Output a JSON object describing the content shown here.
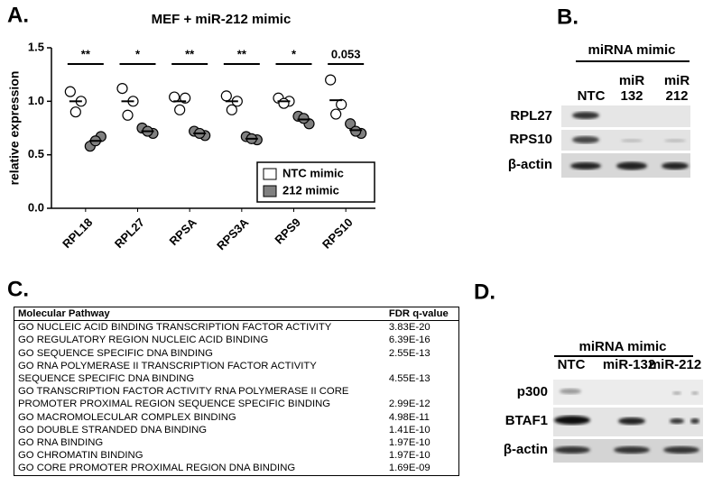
{
  "chart_data": {
    "type": "dotplot",
    "panel_label": "A.",
    "title": "MEF + miR-212 mimic",
    "y_label": "relative expression",
    "categories": [
      "RPL18",
      "RPL27",
      "RPSA",
      "RPS3A",
      "RPS9",
      "RPS10"
    ],
    "annotations": [
      "**",
      "*",
      "**",
      "**",
      "*",
      "0.053"
    ],
    "ylim": [
      0,
      1.5
    ],
    "yticks": [
      {
        "value": 0,
        "label": "0.0"
      },
      0.5,
      {
        "value": 1,
        "label": "1.0"
      },
      1.5
    ],
    "series": [
      {
        "name": "NTC mimic",
        "color": "#ffffff",
        "points": [
          [
            1.09,
            1.0,
            0.9
          ],
          [
            1.12,
            1.0,
            0.87
          ],
          [
            1.04,
            1.03,
            0.92
          ],
          [
            1.05,
            1.0,
            0.92
          ],
          [
            1.03,
            1.0,
            0.98
          ],
          [
            1.2,
            0.97,
            0.88
          ]
        ],
        "means": [
          1.0,
          1.0,
          1.0,
          1.0,
          1.0,
          1.01
        ]
      },
      {
        "name": "212 mimic",
        "color": "#808080",
        "points": [
          [
            0.58,
            0.67,
            0.63
          ],
          [
            0.75,
            0.7,
            0.72
          ],
          [
            0.72,
            0.68,
            0.7
          ],
          [
            0.67,
            0.64,
            0.65
          ],
          [
            0.86,
            0.79,
            0.84
          ],
          [
            0.79,
            0.7,
            0.72
          ]
        ],
        "means": [
          0.63,
          0.72,
          0.7,
          0.65,
          0.83,
          0.73
        ]
      }
    ]
  },
  "panel_b": {
    "label": "B.",
    "header": "miRNA mimic",
    "lanes": [
      [
        "NTC"
      ],
      [
        "miR",
        "132"
      ],
      [
        "miR",
        "212"
      ]
    ],
    "rows": [
      "RPL27",
      "RPS10",
      "β-actin"
    ]
  },
  "panel_c": {
    "label": "C.",
    "table": {
      "header": [
        "Molecular Pathway",
        "FDR q-value"
      ],
      "rows": [
        [
          [
            "GO NUCLEIC ACID BINDING TRANSCRIPTION FACTOR ACTIVITY"
          ],
          "3.83E-20"
        ],
        [
          [
            "GO REGULATORY REGION NUCLEIC ACID BINDING"
          ],
          "6.39E-16"
        ],
        [
          [
            "GO SEQUENCE SPECIFIC DNA BINDING"
          ],
          "2.55E-13"
        ],
        [
          [
            "GO RNA POLYMERASE II TRANSCRIPTION FACTOR ACTIVITY",
            "SEQUENCE SPECIFIC DNA BINDING"
          ],
          "4.55E-13"
        ],
        [
          [
            "GO TRANSCRIPTION FACTOR ACTIVITY RNA POLYMERASE II CORE",
            "PROMOTER PROXIMAL REGION SEQUENCE SPECIFIC BINDING"
          ],
          "2.99E-12"
        ],
        [
          [
            "GO MACROMOLECULAR COMPLEX BINDING"
          ],
          "4.98E-11"
        ],
        [
          [
            "GO DOUBLE STRANDED DNA BINDING"
          ],
          "1.41E-10"
        ],
        [
          [
            "GO RNA BINDING"
          ],
          "1.97E-10"
        ],
        [
          [
            "GO CHROMATIN BINDING"
          ],
          "1.97E-10"
        ],
        [
          [
            "GO CORE PROMOTER PROXIMAL REGION DNA BINDING"
          ],
          "1.69E-09"
        ]
      ]
    }
  },
  "panel_d": {
    "label": "D.",
    "header": "miRNA mimic",
    "lanes": [
      "NTC",
      "miR-132",
      "miR-212"
    ],
    "rows": [
      "p300",
      "BTAF1",
      "β-actin"
    ]
  }
}
